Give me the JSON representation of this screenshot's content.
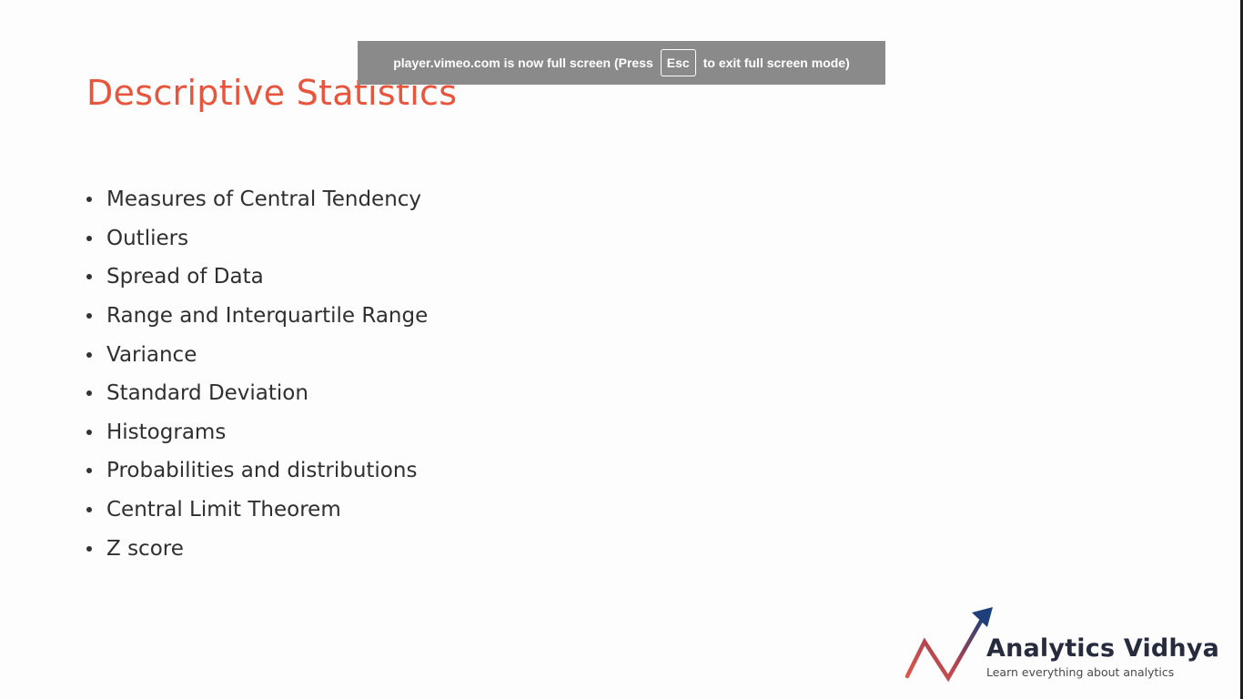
{
  "slide": {
    "title": "Descriptive Statistics",
    "bullets": [
      "Measures of Central Tendency",
      "Outliers",
      "Spread of Data",
      "Range and Interquartile Range",
      "Variance",
      "Standard Deviation",
      "Histograms",
      "Probabilities and distributions",
      "Central Limit Theorem",
      "Z score"
    ]
  },
  "fullscreen_notice": {
    "text_before": "player.vimeo.com is now full screen (Press",
    "key": "Esc",
    "text_after": "to exit full screen mode)"
  },
  "logo": {
    "name": "Analytics Vidhya",
    "tagline": "Learn everything about analytics",
    "colors": {
      "red": "#e05a4a",
      "navy": "#1f3f7a",
      "text": "#262b3d"
    }
  }
}
